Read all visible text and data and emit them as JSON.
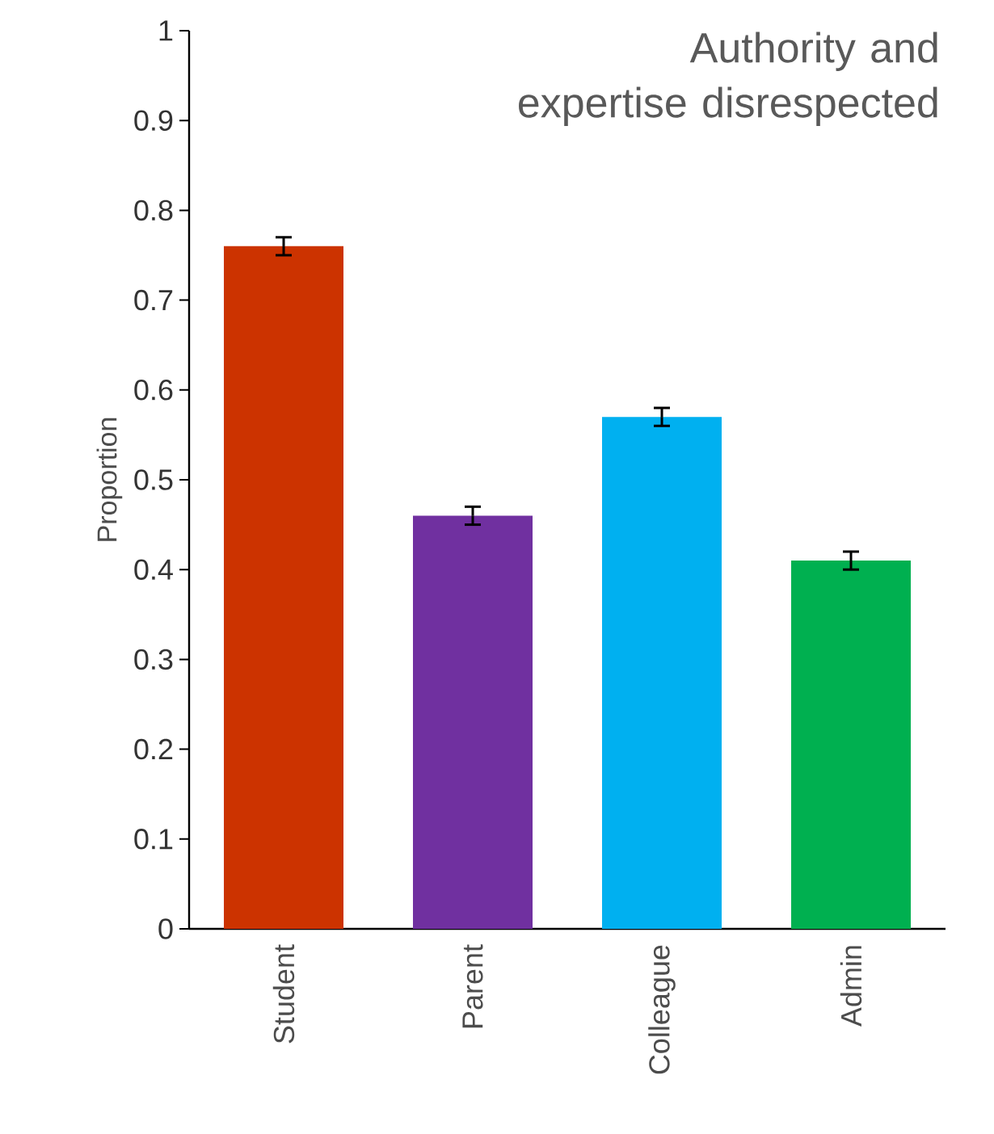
{
  "chart_data": {
    "type": "bar",
    "title": "Authority and expertise disrespected",
    "ylabel": "Proportion",
    "categories": [
      "Student",
      "Parent",
      "Colleague",
      "Admin"
    ],
    "values": [
      0.76,
      0.46,
      0.57,
      0.41
    ],
    "errors": [
      0.01,
      0.01,
      0.01,
      0.01
    ],
    "colors": [
      "#cc3300",
      "#7030a0",
      "#00b0f0",
      "#00b050"
    ],
    "ylim": [
      0,
      1
    ],
    "yticks": [
      0,
      0.1,
      0.2,
      0.3,
      0.4,
      0.5,
      0.6,
      0.7,
      0.8,
      0.9,
      1
    ],
    "grid": false
  }
}
